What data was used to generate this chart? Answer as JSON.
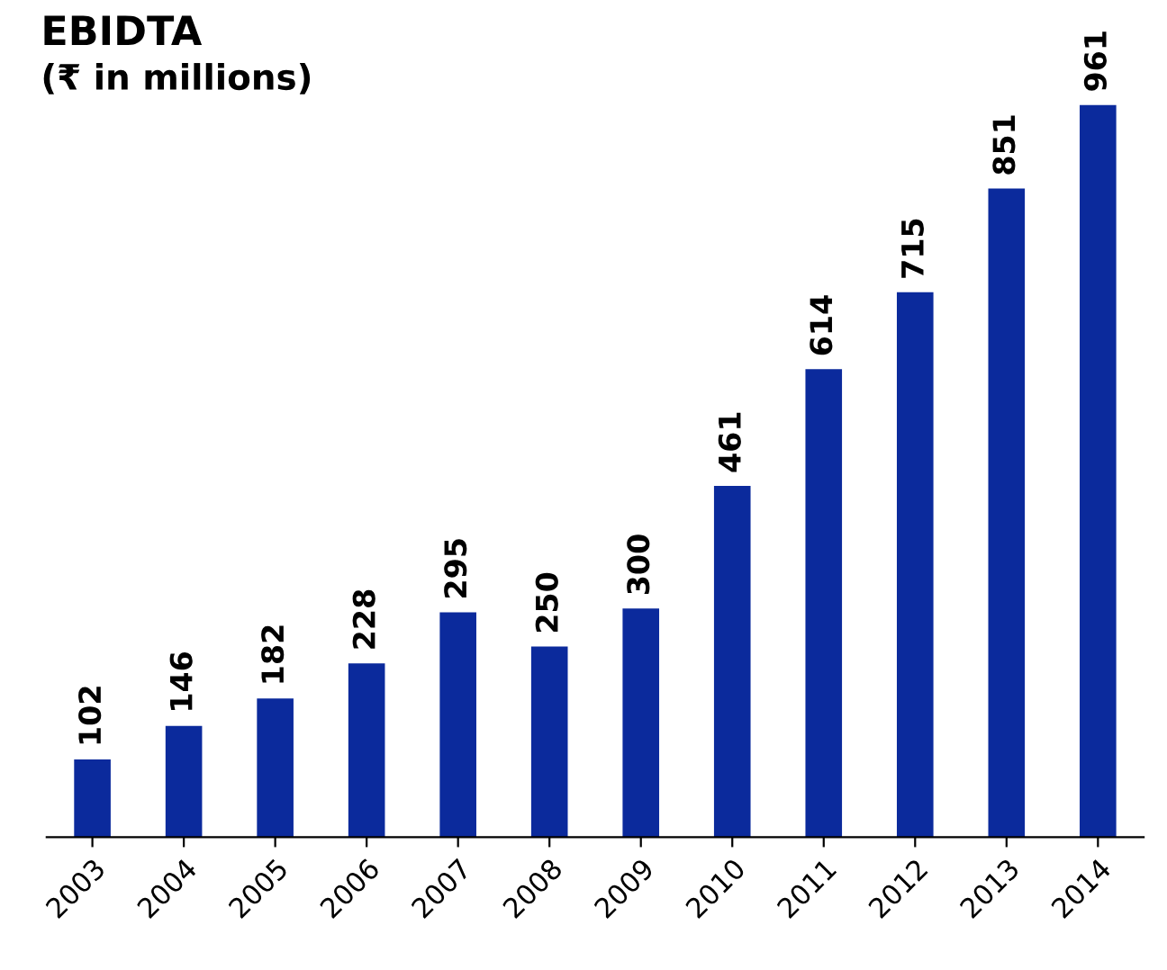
{
  "chart_data": {
    "type": "bar",
    "title": "EBIDTA",
    "subtitle": "(₹ in millions)",
    "categories": [
      "2003",
      "2004",
      "2005",
      "2006",
      "2007",
      "2008",
      "2009",
      "2010",
      "2011",
      "2012",
      "2013",
      "2014"
    ],
    "values": [
      102,
      146,
      182,
      228,
      295,
      250,
      300,
      461,
      614,
      715,
      851,
      961
    ],
    "color": "#0b2a9c",
    "data_labels": true,
    "grid": false,
    "legend": false
  }
}
